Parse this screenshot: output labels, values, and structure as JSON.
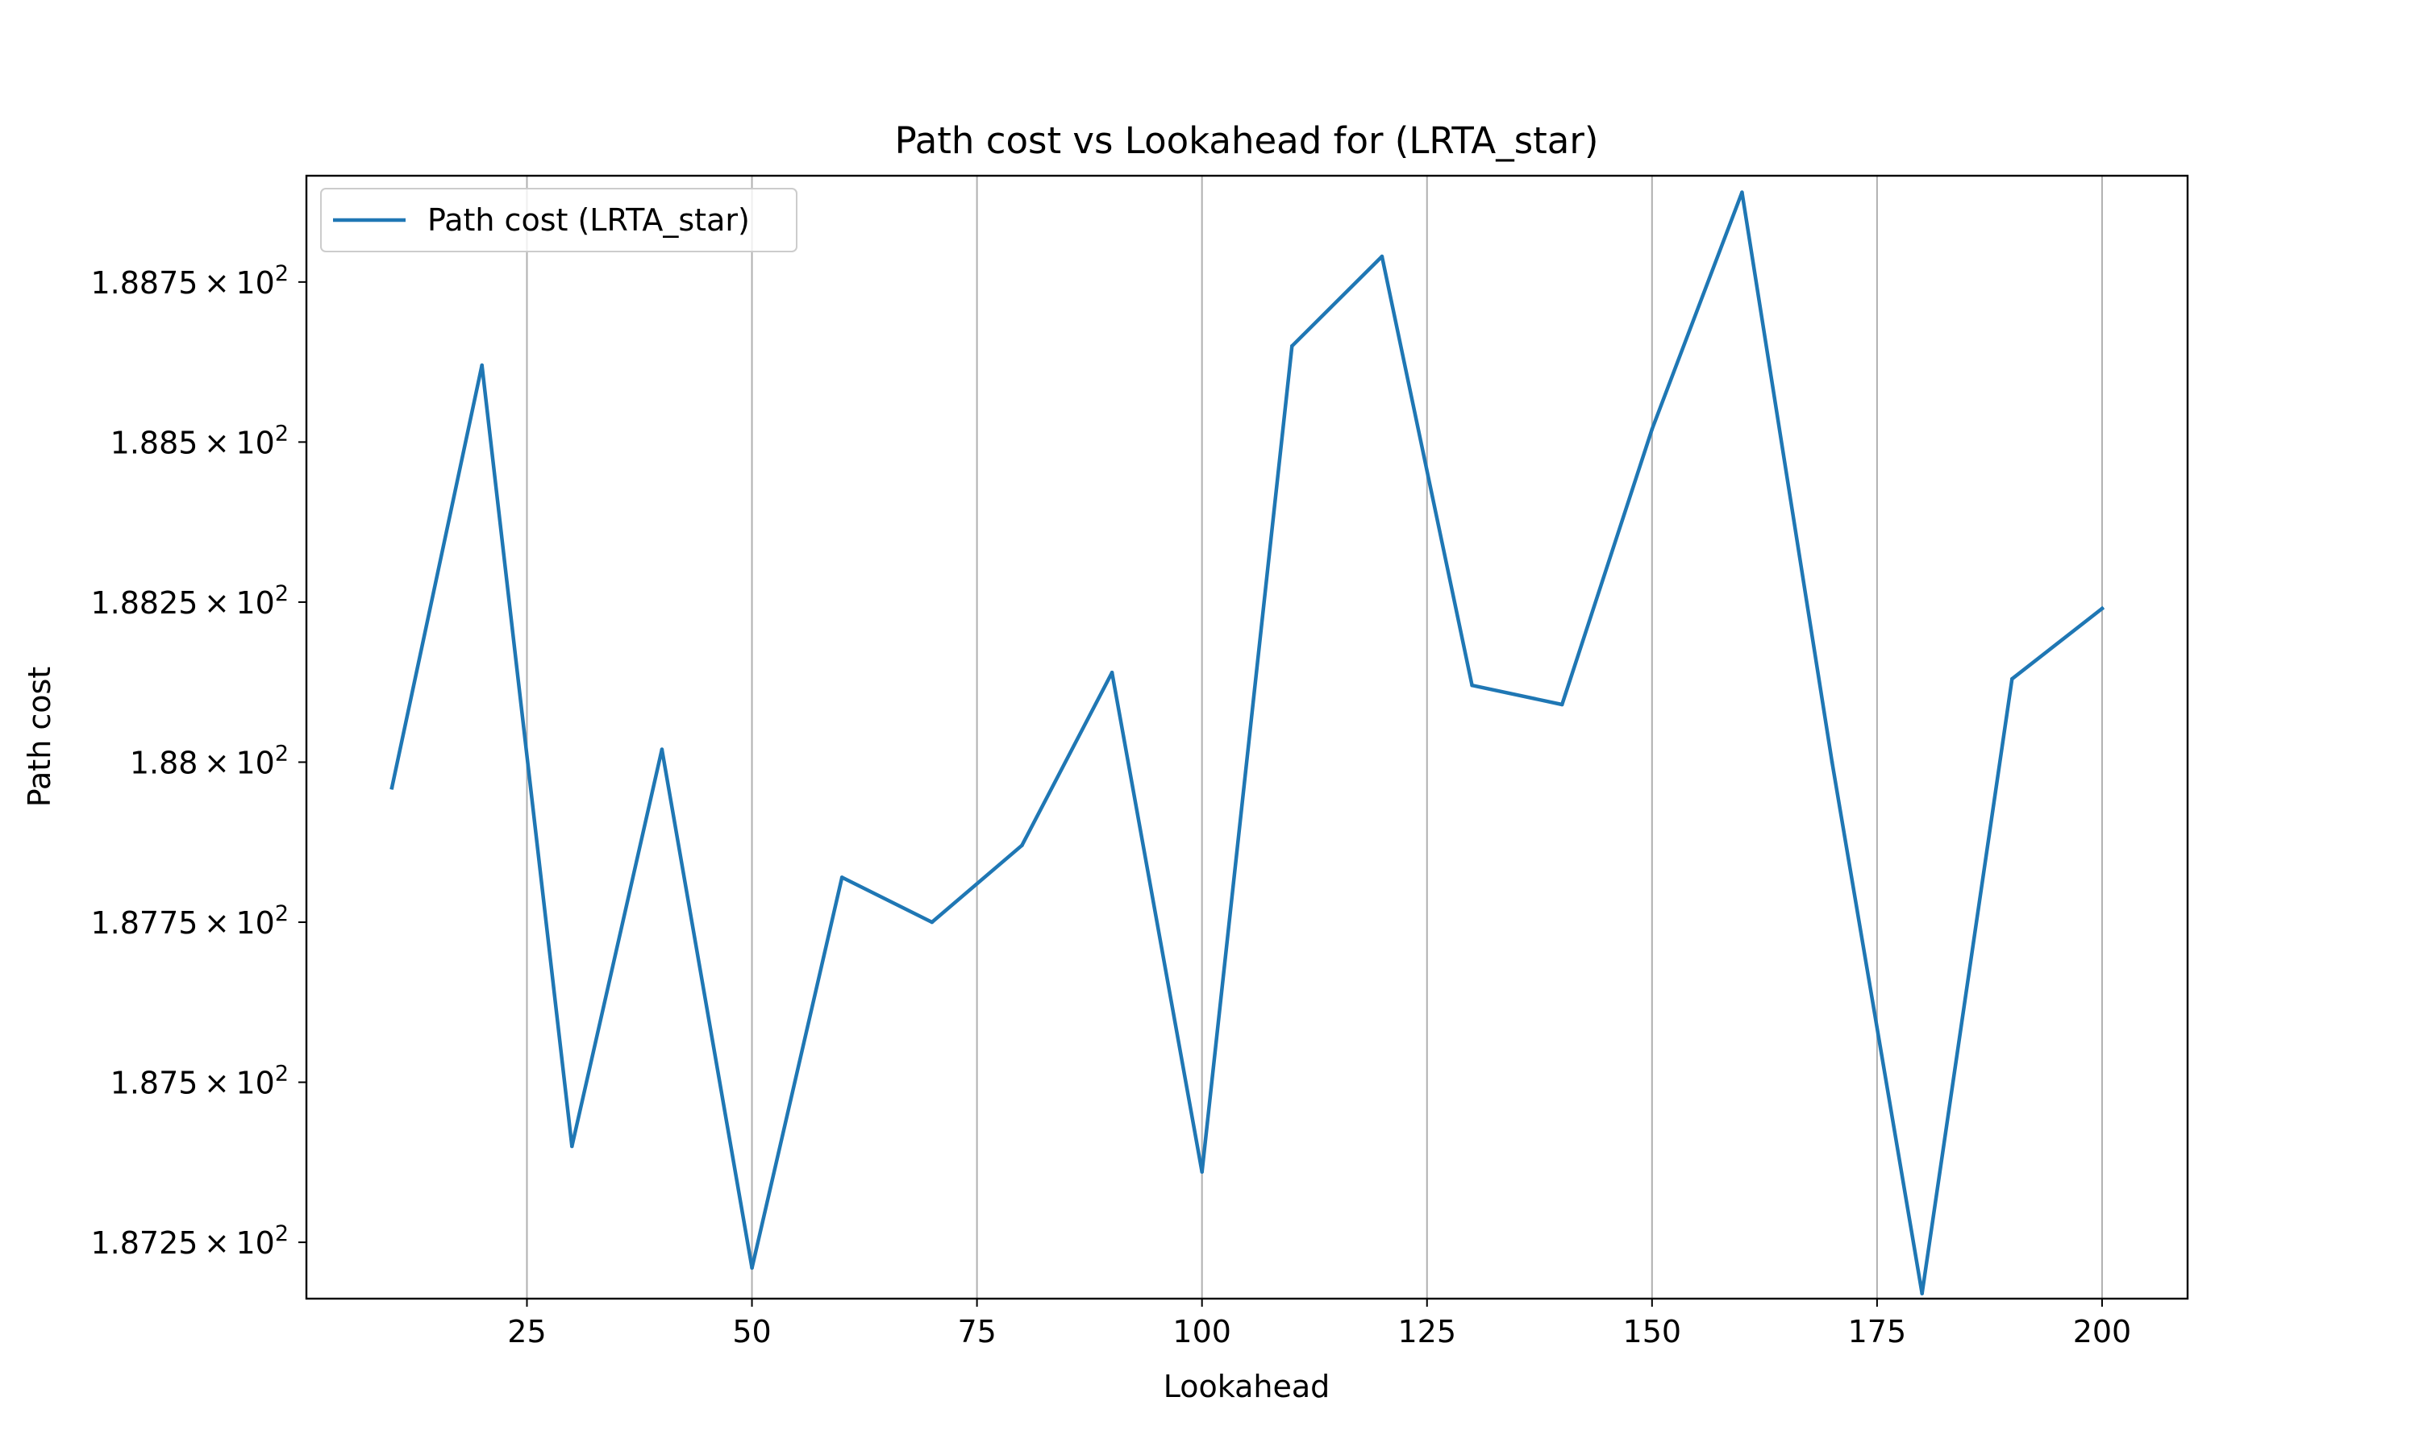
{
  "chart_data": {
    "type": "line",
    "title": "Path cost vs Lookahead for  (LRTA_star)",
    "xlabel": "Lookahead",
    "ylabel": "Path cost",
    "xlim": [
      0.5,
      209.5
    ],
    "ylim": [
      187.162,
      188.916
    ],
    "x_ticks": [
      25,
      50,
      75,
      100,
      125,
      150,
      175,
      200
    ],
    "x_tick_labels": [
      "25",
      "50",
      "75",
      "100",
      "125",
      "150",
      "175",
      "200"
    ],
    "y_ticks": [
      187.25,
      187.5,
      187.75,
      188.0,
      188.25,
      188.5,
      188.75
    ],
    "y_tick_mantissas": [
      "1.8725",
      "1.875",
      "1.8775",
      "1.88",
      "1.8825",
      "1.885",
      "1.8875"
    ],
    "y_tick_base": "10",
    "y_tick_exponent": "2",
    "grid": {
      "x": true,
      "y": false
    },
    "legend": {
      "placement": "top-left"
    },
    "series": [
      {
        "name": "Path cost (LRTA_star)",
        "color": "#1f77b4",
        "x": [
          10,
          20,
          30,
          40,
          50,
          60,
          70,
          80,
          90,
          100,
          110,
          120,
          130,
          140,
          150,
          160,
          170,
          180,
          190,
          200
        ],
        "y": [
          187.96,
          188.62,
          187.4,
          188.02,
          187.21,
          187.82,
          187.75,
          187.87,
          188.14,
          187.36,
          188.65,
          188.79,
          188.12,
          188.09,
          188.52,
          188.89,
          188.0,
          187.17,
          188.13,
          188.24
        ]
      }
    ]
  }
}
